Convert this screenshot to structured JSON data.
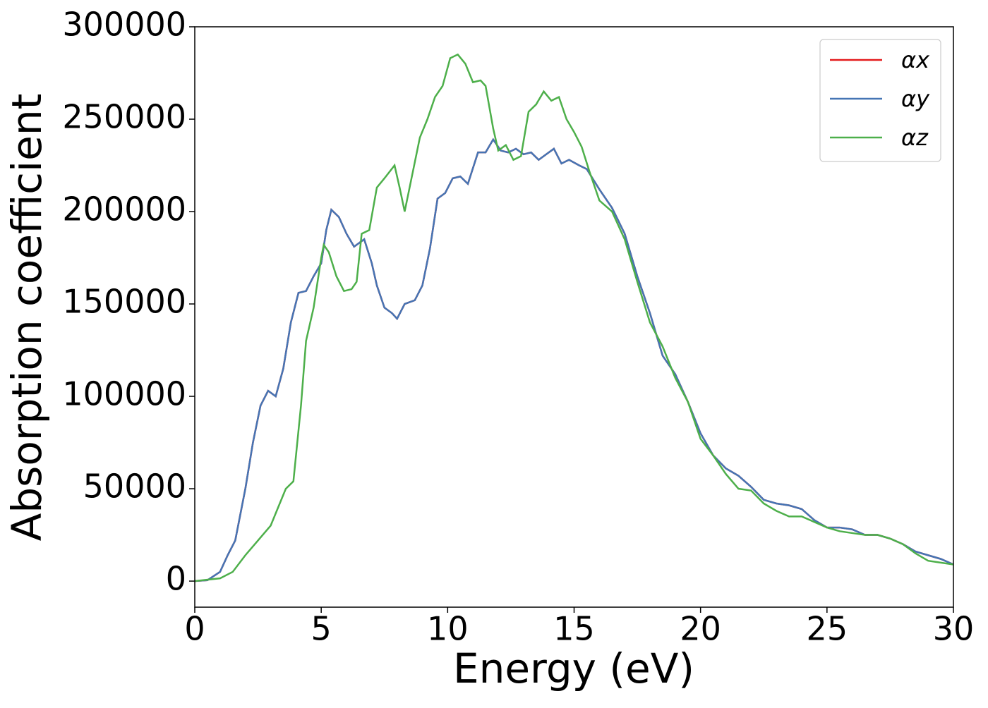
{
  "chart_data": {
    "type": "line",
    "xlabel": "Energy (eV)",
    "ylabel": "Absorption coefficient",
    "xlim": [
      0,
      30
    ],
    "ylim": [
      -14100,
      300000
    ],
    "xticks": [
      0,
      5,
      10,
      15,
      20,
      25,
      30
    ],
    "yticks": [
      0,
      50000,
      100000,
      150000,
      200000,
      250000,
      300000
    ],
    "legend": "upper right",
    "grid": false,
    "series": [
      {
        "name": "αx",
        "color": "#e41a1c",
        "x": [
          0,
          0.5,
          1,
          1.3,
          1.6,
          2,
          2.3,
          2.6,
          2.9,
          3.2,
          3.5,
          3.8,
          4.1,
          4.4,
          4.7,
          5,
          5.2,
          5.4,
          5.7,
          6,
          6.3,
          6.7,
          7,
          7.2,
          7.5,
          7.8,
          8,
          8.3,
          8.7,
          9,
          9.3,
          9.6,
          9.9,
          10.2,
          10.5,
          10.8,
          11.2,
          11.5,
          11.8,
          12.1,
          12.4,
          12.7,
          13,
          13.3,
          13.6,
          13.9,
          14.2,
          14.5,
          14.8,
          15.2,
          15.5,
          16,
          16.5,
          17,
          17.5,
          18,
          18.5,
          19,
          19.5,
          20,
          20.5,
          21,
          21.5,
          22,
          22.5,
          23,
          23.5,
          24,
          24.5,
          25,
          25.5,
          26,
          26.5,
          27,
          27.5,
          28,
          28.5,
          29,
          29.5,
          30
        ],
        "values": [
          0,
          500,
          5000,
          14000,
          22000,
          50000,
          75000,
          95000,
          103000,
          100000,
          115000,
          140000,
          156000,
          157000,
          165000,
          172000,
          190000,
          201000,
          197000,
          188000,
          181000,
          185000,
          172000,
          160000,
          148000,
          145000,
          142000,
          150000,
          152000,
          160000,
          180000,
          207000,
          210000,
          218000,
          219000,
          215000,
          232000,
          232000,
          239000,
          233000,
          232000,
          234000,
          231000,
          232000,
          228000,
          231000,
          234000,
          226000,
          228000,
          225000,
          223000,
          212000,
          202000,
          188000,
          165000,
          145000,
          122000,
          112000,
          97000,
          80000,
          68000,
          61000,
          57000,
          51000,
          44000,
          42000,
          41000,
          39000,
          33000,
          29000,
          29000,
          28000,
          25000,
          25000,
          23000,
          20000,
          16000,
          14000,
          12000,
          9000
        ]
      },
      {
        "name": "αy",
        "color": "#4575b4",
        "x": [
          0,
          0.5,
          1,
          1.3,
          1.6,
          2,
          2.3,
          2.6,
          2.9,
          3.2,
          3.5,
          3.8,
          4.1,
          4.4,
          4.7,
          5,
          5.2,
          5.4,
          5.7,
          6,
          6.3,
          6.7,
          7,
          7.2,
          7.5,
          7.8,
          8,
          8.3,
          8.7,
          9,
          9.3,
          9.6,
          9.9,
          10.2,
          10.5,
          10.8,
          11.2,
          11.5,
          11.8,
          12.1,
          12.4,
          12.7,
          13,
          13.3,
          13.6,
          13.9,
          14.2,
          14.5,
          14.8,
          15.2,
          15.5,
          16,
          16.5,
          17,
          17.5,
          18,
          18.5,
          19,
          19.5,
          20,
          20.5,
          21,
          21.5,
          22,
          22.5,
          23,
          23.5,
          24,
          24.5,
          25,
          25.5,
          26,
          26.5,
          27,
          27.5,
          28,
          28.5,
          29,
          29.5,
          30
        ],
        "values": [
          0,
          500,
          5000,
          14000,
          22000,
          50000,
          75000,
          95000,
          103000,
          100000,
          115000,
          140000,
          156000,
          157000,
          165000,
          172000,
          190000,
          201000,
          197000,
          188000,
          181000,
          185000,
          172000,
          160000,
          148000,
          145000,
          142000,
          150000,
          152000,
          160000,
          180000,
          207000,
          210000,
          218000,
          219000,
          215000,
          232000,
          232000,
          239000,
          233000,
          232000,
          234000,
          231000,
          232000,
          228000,
          231000,
          234000,
          226000,
          228000,
          225000,
          223000,
          212000,
          202000,
          188000,
          165000,
          145000,
          122000,
          112000,
          97000,
          80000,
          68000,
          61000,
          57000,
          51000,
          44000,
          42000,
          41000,
          39000,
          33000,
          29000,
          29000,
          28000,
          25000,
          25000,
          23000,
          20000,
          16000,
          14000,
          12000,
          9000
        ]
      },
      {
        "name": "αz",
        "color": "#4daf4a",
        "x": [
          0,
          1,
          1.5,
          2,
          2.5,
          3,
          3.3,
          3.6,
          3.9,
          4.2,
          4.4,
          4.7,
          5,
          5.1,
          5.3,
          5.6,
          5.9,
          6.2,
          6.4,
          6.6,
          6.9,
          7.2,
          7.5,
          7.9,
          8.1,
          8.3,
          8.6,
          8.9,
          9.2,
          9.5,
          9.8,
          10.1,
          10.4,
          10.7,
          11,
          11.3,
          11.5,
          11.8,
          12,
          12.3,
          12.6,
          12.9,
          13.2,
          13.5,
          13.8,
          14.1,
          14.4,
          14.7,
          15,
          15.3,
          15.6,
          16,
          16.5,
          17,
          17.5,
          18,
          18.5,
          19,
          19.5,
          20,
          20.5,
          21,
          21.5,
          22,
          22.5,
          23,
          23.5,
          24,
          24.5,
          25,
          25.5,
          26,
          26.5,
          27,
          27.5,
          28,
          28.5,
          29,
          29.5,
          30
        ],
        "values": [
          0,
          1500,
          5000,
          14000,
          22000,
          30000,
          40000,
          50000,
          54000,
          95000,
          130000,
          148000,
          175000,
          182000,
          178000,
          165000,
          157000,
          158000,
          162000,
          188000,
          190000,
          213000,
          218000,
          225000,
          213000,
          200000,
          220000,
          240000,
          250000,
          262000,
          268000,
          283000,
          285000,
          280000,
          270000,
          271000,
          268000,
          245000,
          233000,
          236000,
          228000,
          230000,
          254000,
          258000,
          265000,
          260000,
          262000,
          250000,
          243000,
          235000,
          222000,
          206000,
          200000,
          185000,
          162000,
          140000,
          127000,
          110000,
          97000,
          77000,
          68000,
          58000,
          50000,
          49000,
          42000,
          38000,
          35000,
          35000,
          32000,
          29000,
          27000,
          26000,
          25000,
          25000,
          23000,
          20000,
          15000,
          11000,
          10000,
          9000
        ]
      }
    ]
  }
}
